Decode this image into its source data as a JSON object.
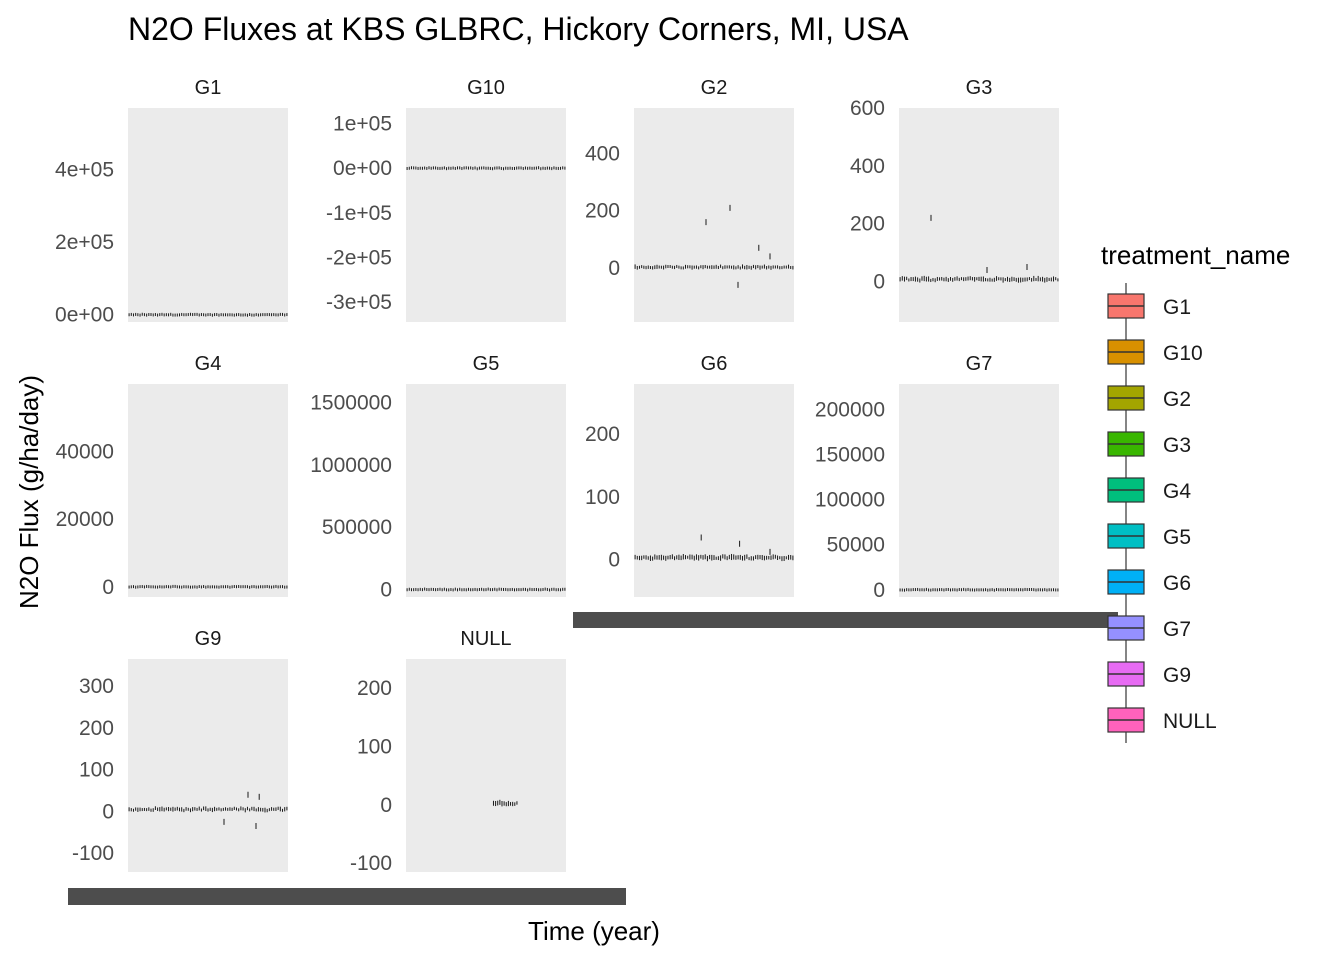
{
  "chart_data": {
    "type": "box",
    "title": "N2O Fluxes at KBS GLBRC, Hickory Corners, MI, USA",
    "xlabel": "Time (year)",
    "ylabel": "N2O Flux (g/ha/day)",
    "legend": {
      "title": "treatment_name",
      "position": "right",
      "entries": [
        {
          "label": "G1",
          "color": "#F8766D"
        },
        {
          "label": "G10",
          "color": "#D89000"
        },
        {
          "label": "G2",
          "color": "#A3A500"
        },
        {
          "label": "G3",
          "color": "#39B600"
        },
        {
          "label": "G4",
          "color": "#00BF7D"
        },
        {
          "label": "G5",
          "color": "#00BFC4"
        },
        {
          "label": "G6",
          "color": "#00B0F6"
        },
        {
          "label": "G7",
          "color": "#9590FF"
        },
        {
          "label": "G9",
          "color": "#E76BF3"
        },
        {
          "label": "NULL",
          "color": "#FF62BC"
        }
      ]
    },
    "panel_background": "#EBEBEB",
    "facets": [
      {
        "name": "G1",
        "ylim": [
          -20000,
          570000
        ],
        "ticks": [
          0,
          200000,
          400000
        ],
        "tick_labels": [
          "0e+00",
          "2e+05",
          "4e+05"
        ],
        "series": {
          "level": 0,
          "spread": 3000,
          "spikes": []
        }
      },
      {
        "name": "G10",
        "ylim": [
          -345000,
          135000
        ],
        "ticks": [
          -300000,
          -200000,
          -100000,
          0,
          100000
        ],
        "tick_labels": [
          "-3e+05",
          "-2e+05",
          "-1e+05",
          "0e+00",
          "1e+05"
        ],
        "series": {
          "level": 0,
          "spread": 2500,
          "spikes": []
        }
      },
      {
        "name": "G2",
        "ylim": [
          -190,
          560
        ],
        "ticks": [
          0,
          200,
          400
        ],
        "tick_labels": [
          "0",
          "200",
          "400"
        ],
        "series": {
          "level": 2,
          "spread": 8,
          "spikes": [
            [
              0.45,
              160
            ],
            [
              0.6,
              210
            ],
            [
              0.78,
              70
            ],
            [
              0.65,
              -60
            ],
            [
              0.85,
              40
            ]
          ]
        }
      },
      {
        "name": "G3",
        "ylim": [
          -140,
          600
        ],
        "ticks": [
          0,
          200,
          400,
          600
        ],
        "tick_labels": [
          "0",
          "200",
          "400",
          "600"
        ],
        "series": {
          "level": 8,
          "spread": 10,
          "spikes": [
            [
              0.2,
              220
            ],
            [
              0.55,
              40
            ],
            [
              0.8,
              50
            ]
          ]
        }
      },
      {
        "name": "G4",
        "ylim": [
          -3000,
          60000
        ],
        "ticks": [
          0,
          20000,
          40000
        ],
        "tick_labels": [
          "0",
          "20000",
          "40000"
        ],
        "series": {
          "level": 0,
          "spread": 300,
          "spikes": []
        }
      },
      {
        "name": "G5",
        "ylim": [
          -60000,
          1650000
        ],
        "ticks": [
          0,
          500000,
          1000000,
          1500000
        ],
        "tick_labels": [
          "0",
          "500000",
          "1000000",
          "1500000"
        ],
        "series": {
          "level": 0,
          "spread": 8000,
          "spikes": []
        }
      },
      {
        "name": "G6",
        "ylim": [
          -60,
          280
        ],
        "ticks": [
          0,
          100,
          200
        ],
        "tick_labels": [
          "0",
          "100",
          "200"
        ],
        "series": {
          "level": 3,
          "spread": 5,
          "spikes": [
            [
              0.42,
              35
            ],
            [
              0.66,
              25
            ],
            [
              0.85,
              12
            ]
          ]
        }
      },
      {
        "name": "G7",
        "ylim": [
          -8000,
          228000
        ],
        "ticks": [
          0,
          50000,
          100000,
          150000,
          200000
        ],
        "tick_labels": [
          "0",
          "50000",
          "100000",
          "150000",
          "200000"
        ],
        "series": {
          "level": 0,
          "spread": 900,
          "spikes": []
        }
      },
      {
        "name": "G9",
        "ylim": [
          -145,
          365
        ],
        "ticks": [
          -100,
          0,
          100,
          200,
          300
        ],
        "tick_labels": [
          "-100",
          "0",
          "100",
          "200",
          "300"
        ],
        "series": {
          "level": 5,
          "spread": 6,
          "spikes": [
            [
              0.6,
              -25
            ],
            [
              0.75,
              40
            ],
            [
              0.8,
              -35
            ],
            [
              0.82,
              35
            ]
          ]
        }
      },
      {
        "name": "NULL",
        "ylim": [
          -115,
          250
        ],
        "ticks": [
          -100,
          0,
          100,
          200
        ],
        "tick_labels": [
          "-100",
          "0",
          "100",
          "200"
        ],
        "series": {
          "level": 2,
          "spread": 6,
          "spikes": [],
          "xrange": [
            0.54,
            0.7
          ]
        }
      }
    ]
  }
}
